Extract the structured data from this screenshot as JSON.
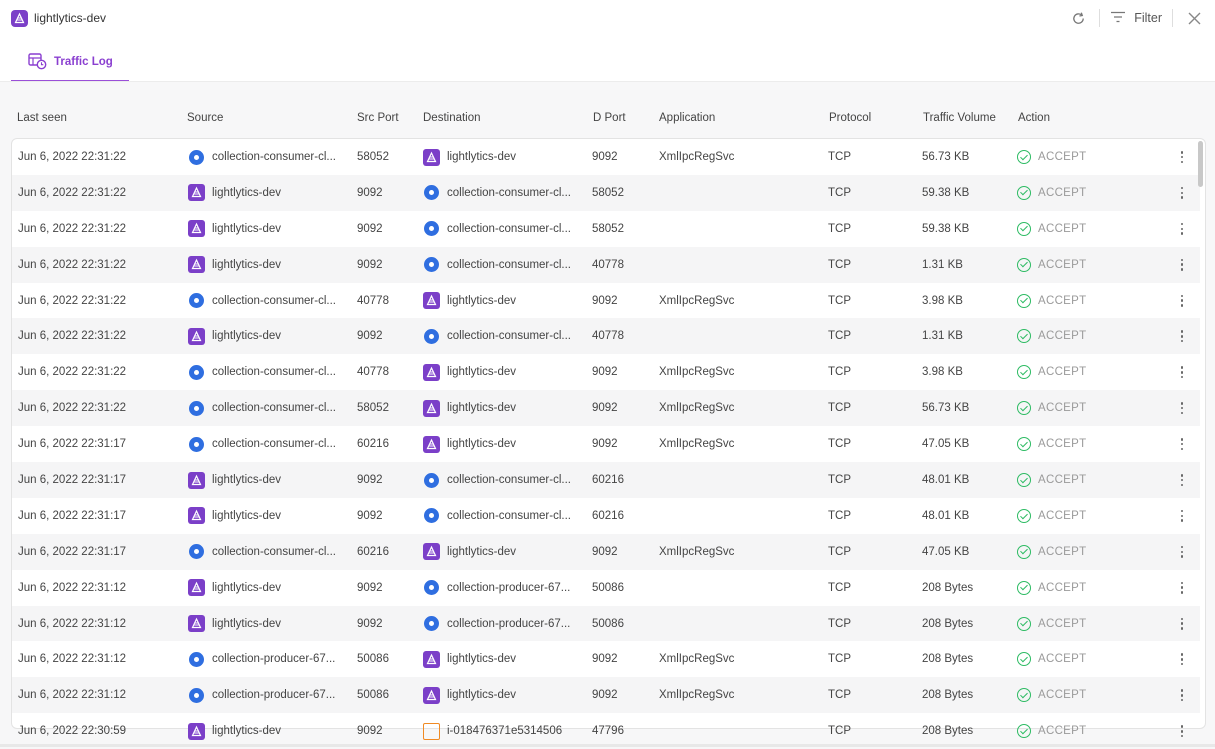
{
  "app": {
    "title": "lightlytics-dev"
  },
  "toolbar": {
    "filter_label": "Filter"
  },
  "tabs": [
    {
      "label": "Traffic Log"
    }
  ],
  "columns": [
    "Last seen",
    "Source",
    "Src Port",
    "Destination",
    "D Port",
    "Application",
    "Protocol",
    "Traffic Volume",
    "Action"
  ],
  "rows": [
    {
      "last_seen": "Jun 6, 2022 22:31:22",
      "source": "collection-consumer-cl...",
      "source_type": "k8s",
      "src_port": "58052",
      "destination": "lightlytics-dev",
      "destination_type": "lightlytics",
      "d_port": "9092",
      "application": "XmlIpcRegSvc",
      "protocol": "TCP",
      "volume": "56.73 KB",
      "action": "ACCEPT"
    },
    {
      "last_seen": "Jun 6, 2022 22:31:22",
      "source": "lightlytics-dev",
      "source_type": "lightlytics",
      "src_port": "9092",
      "destination": "collection-consumer-cl...",
      "destination_type": "k8s",
      "d_port": "58052",
      "application": "",
      "protocol": "TCP",
      "volume": "59.38 KB",
      "action": "ACCEPT"
    },
    {
      "last_seen": "Jun 6, 2022 22:31:22",
      "source": "lightlytics-dev",
      "source_type": "lightlytics",
      "src_port": "9092",
      "destination": "collection-consumer-cl...",
      "destination_type": "k8s",
      "d_port": "58052",
      "application": "",
      "protocol": "TCP",
      "volume": "59.38 KB",
      "action": "ACCEPT"
    },
    {
      "last_seen": "Jun 6, 2022 22:31:22",
      "source": "lightlytics-dev",
      "source_type": "lightlytics",
      "src_port": "9092",
      "destination": "collection-consumer-cl...",
      "destination_type": "k8s",
      "d_port": "40778",
      "application": "",
      "protocol": "TCP",
      "volume": "1.31 KB",
      "action": "ACCEPT"
    },
    {
      "last_seen": "Jun 6, 2022 22:31:22",
      "source": "collection-consumer-cl...",
      "source_type": "k8s",
      "src_port": "40778",
      "destination": "lightlytics-dev",
      "destination_type": "lightlytics",
      "d_port": "9092",
      "application": "XmlIpcRegSvc",
      "protocol": "TCP",
      "volume": "3.98 KB",
      "action": "ACCEPT"
    },
    {
      "last_seen": "Jun 6, 2022 22:31:22",
      "source": "lightlytics-dev",
      "source_type": "lightlytics",
      "src_port": "9092",
      "destination": "collection-consumer-cl...",
      "destination_type": "k8s",
      "d_port": "40778",
      "application": "",
      "protocol": "TCP",
      "volume": "1.31 KB",
      "action": "ACCEPT"
    },
    {
      "last_seen": "Jun 6, 2022 22:31:22",
      "source": "collection-consumer-cl...",
      "source_type": "k8s",
      "src_port": "40778",
      "destination": "lightlytics-dev",
      "destination_type": "lightlytics",
      "d_port": "9092",
      "application": "XmlIpcRegSvc",
      "protocol": "TCP",
      "volume": "3.98 KB",
      "action": "ACCEPT"
    },
    {
      "last_seen": "Jun 6, 2022 22:31:22",
      "source": "collection-consumer-cl...",
      "source_type": "k8s",
      "src_port": "58052",
      "destination": "lightlytics-dev",
      "destination_type": "lightlytics",
      "d_port": "9092",
      "application": "XmlIpcRegSvc",
      "protocol": "TCP",
      "volume": "56.73 KB",
      "action": "ACCEPT"
    },
    {
      "last_seen": "Jun 6, 2022 22:31:17",
      "source": "collection-consumer-cl...",
      "source_type": "k8s",
      "src_port": "60216",
      "destination": "lightlytics-dev",
      "destination_type": "lightlytics",
      "d_port": "9092",
      "application": "XmlIpcRegSvc",
      "protocol": "TCP",
      "volume": "47.05 KB",
      "action": "ACCEPT"
    },
    {
      "last_seen": "Jun 6, 2022 22:31:17",
      "source": "lightlytics-dev",
      "source_type": "lightlytics",
      "src_port": "9092",
      "destination": "collection-consumer-cl...",
      "destination_type": "k8s",
      "d_port": "60216",
      "application": "",
      "protocol": "TCP",
      "volume": "48.01 KB",
      "action": "ACCEPT"
    },
    {
      "last_seen": "Jun 6, 2022 22:31:17",
      "source": "lightlytics-dev",
      "source_type": "lightlytics",
      "src_port": "9092",
      "destination": "collection-consumer-cl...",
      "destination_type": "k8s",
      "d_port": "60216",
      "application": "",
      "protocol": "TCP",
      "volume": "48.01 KB",
      "action": "ACCEPT"
    },
    {
      "last_seen": "Jun 6, 2022 22:31:17",
      "source": "collection-consumer-cl...",
      "source_type": "k8s",
      "src_port": "60216",
      "destination": "lightlytics-dev",
      "destination_type": "lightlytics",
      "d_port": "9092",
      "application": "XmlIpcRegSvc",
      "protocol": "TCP",
      "volume": "47.05 KB",
      "action": "ACCEPT"
    },
    {
      "last_seen": "Jun 6, 2022 22:31:12",
      "source": "lightlytics-dev",
      "source_type": "lightlytics",
      "src_port": "9092",
      "destination": "collection-producer-67...",
      "destination_type": "k8s",
      "d_port": "50086",
      "application": "",
      "protocol": "TCP",
      "volume": "208 Bytes",
      "action": "ACCEPT"
    },
    {
      "last_seen": "Jun 6, 2022 22:31:12",
      "source": "lightlytics-dev",
      "source_type": "lightlytics",
      "src_port": "9092",
      "destination": "collection-producer-67...",
      "destination_type": "k8s",
      "d_port": "50086",
      "application": "",
      "protocol": "TCP",
      "volume": "208 Bytes",
      "action": "ACCEPT"
    },
    {
      "last_seen": "Jun 6, 2022 22:31:12",
      "source": "collection-producer-67...",
      "source_type": "k8s",
      "src_port": "50086",
      "destination": "lightlytics-dev",
      "destination_type": "lightlytics",
      "d_port": "9092",
      "application": "XmlIpcRegSvc",
      "protocol": "TCP",
      "volume": "208 Bytes",
      "action": "ACCEPT"
    },
    {
      "last_seen": "Jun 6, 2022 22:31:12",
      "source": "collection-producer-67...",
      "source_type": "k8s",
      "src_port": "50086",
      "destination": "lightlytics-dev",
      "destination_type": "lightlytics",
      "d_port": "9092",
      "application": "XmlIpcRegSvc",
      "protocol": "TCP",
      "volume": "208 Bytes",
      "action": "ACCEPT"
    },
    {
      "last_seen": "Jun 6, 2022 22:30:59",
      "source": "lightlytics-dev",
      "source_type": "lightlytics",
      "src_port": "9092",
      "destination": "i-018476371e5314506",
      "destination_type": "ec2",
      "d_port": "47796",
      "application": "",
      "protocol": "TCP",
      "volume": "208 Bytes",
      "action": "ACCEPT"
    }
  ],
  "icons": {
    "refresh": "refresh-icon",
    "filter": "filter-icon",
    "close": "close-icon",
    "tab": "traffic-log-icon",
    "row_menu": "more-vertical-icon",
    "accept": "check-circle-icon",
    "lightlytics": "lightlytics-icon",
    "k8s": "kubernetes-icon",
    "ec2": "ec2-instance-icon"
  },
  "colors": {
    "accent": "#9a4fd8",
    "accept": "#2dbb63",
    "k8s": "#2f6ee0",
    "logo": "#7b3fc8",
    "ec2": "#f08a24"
  }
}
